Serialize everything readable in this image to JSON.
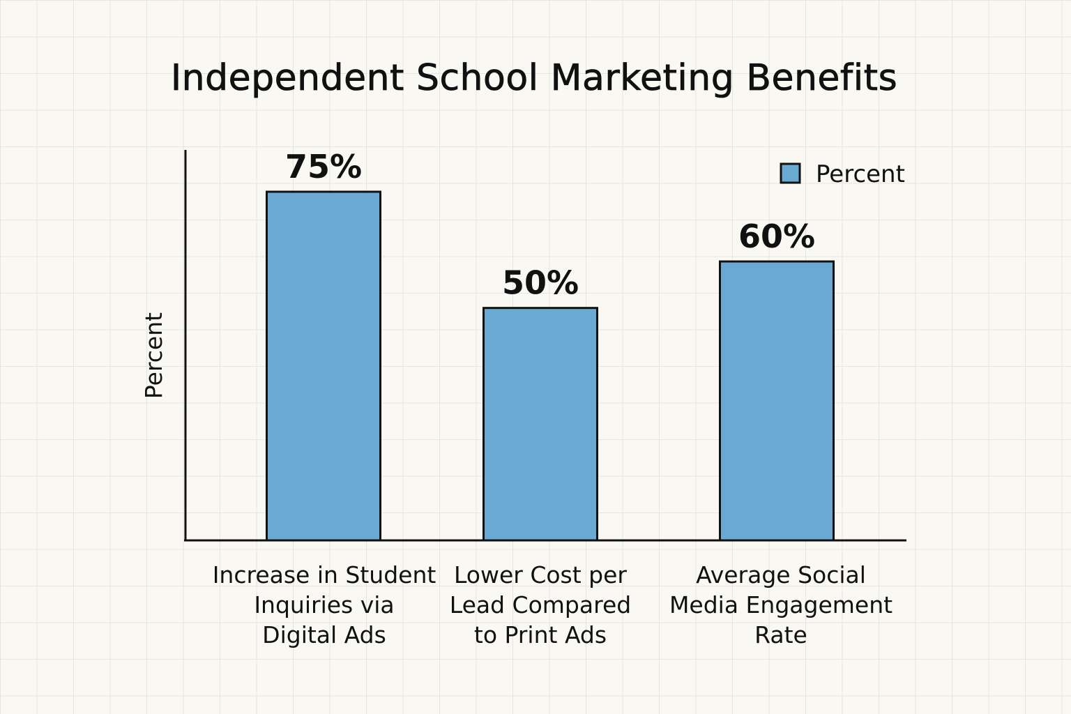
{
  "chart_data": {
    "type": "bar",
    "title": "Independent School Marketing Benefits",
    "ylabel": "Percent",
    "xlabel": "",
    "categories": [
      [
        "Increase in Student",
        "Inquiries via",
        "Digital Ads"
      ],
      [
        "Lower Cost per",
        "Lead Compared",
        "to Print Ads"
      ],
      [
        "Average Social",
        "Media Engagement",
        "Rate"
      ]
    ],
    "series": [
      {
        "name": "Percent",
        "values": [
          75,
          50,
          60
        ],
        "labels": [
          "75%",
          "50%",
          "60%"
        ],
        "color": "#6aaad2"
      }
    ],
    "ylim": [
      0,
      84
    ],
    "grid": false,
    "legend_position": "top-right"
  },
  "colors": {
    "bar_fill": "#6aaad2",
    "bar_stroke": "#111111",
    "axis": "#111111",
    "background": "#faf8f3"
  }
}
